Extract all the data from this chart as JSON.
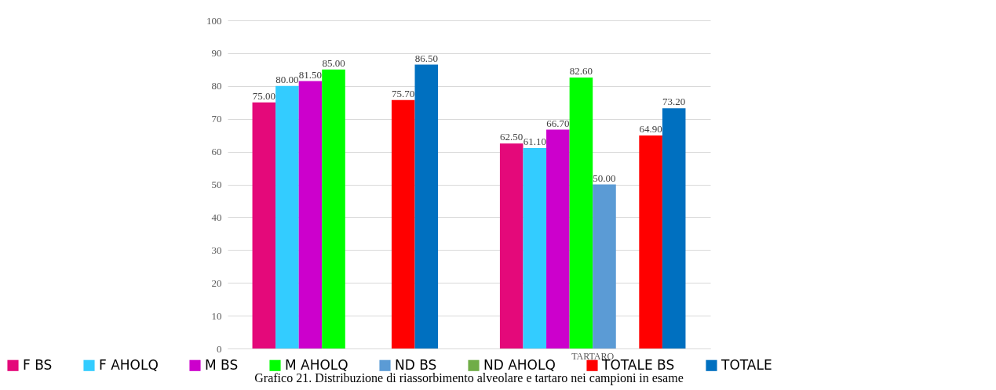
{
  "chart_data": {
    "type": "bar",
    "title": "Grafico 21. Distribuzione di riassorbimento alveolare e tartaro nei campioni in esame",
    "categories": [
      null,
      "TARTARO"
    ],
    "series": [
      {
        "name": "F BS",
        "color": "#e4097a",
        "values": [
          75.0,
          62.5
        ],
        "value_labels": [
          "75.00",
          "62.50"
        ]
      },
      {
        "name": "F AHOLQ",
        "color": "#33ccff",
        "values": [
          80.0,
          61.1
        ],
        "value_labels": [
          "80.00",
          "61.10"
        ]
      },
      {
        "name": "M BS",
        "color": "#cc00cc",
        "values": [
          81.5,
          66.7
        ],
        "value_labels": [
          "81.50",
          "66.70"
        ]
      },
      {
        "name": "M AHOLQ",
        "color": "#00ff00",
        "values": [
          85.0,
          82.6
        ],
        "value_labels": [
          "85.00",
          "82.60"
        ]
      },
      {
        "name": "ND BS",
        "color": "#5b9bd5",
        "values": [
          0,
          50.0
        ],
        "value_labels": [
          null,
          "50.00"
        ]
      },
      {
        "name": "ND AHOLQ",
        "color": "#70ad47",
        "values": [
          0,
          0
        ],
        "value_labels": [
          null,
          null
        ]
      },
      {
        "name": "TOTALE BS",
        "color": "#ff0000",
        "values": [
          75.7,
          64.9
        ],
        "value_labels": [
          "75.70",
          "64.90"
        ]
      },
      {
        "name": "TOTALE",
        "color": "#0070c0",
        "values": [
          86.5,
          73.2
        ],
        "value_labels": [
          "86.50",
          "73.20"
        ]
      }
    ],
    "ylim": [
      0,
      100
    ],
    "yticks": [
      0,
      10,
      20,
      30,
      40,
      50,
      60,
      70,
      80,
      90,
      100
    ],
    "grid": "y",
    "legend": "bottom"
  }
}
